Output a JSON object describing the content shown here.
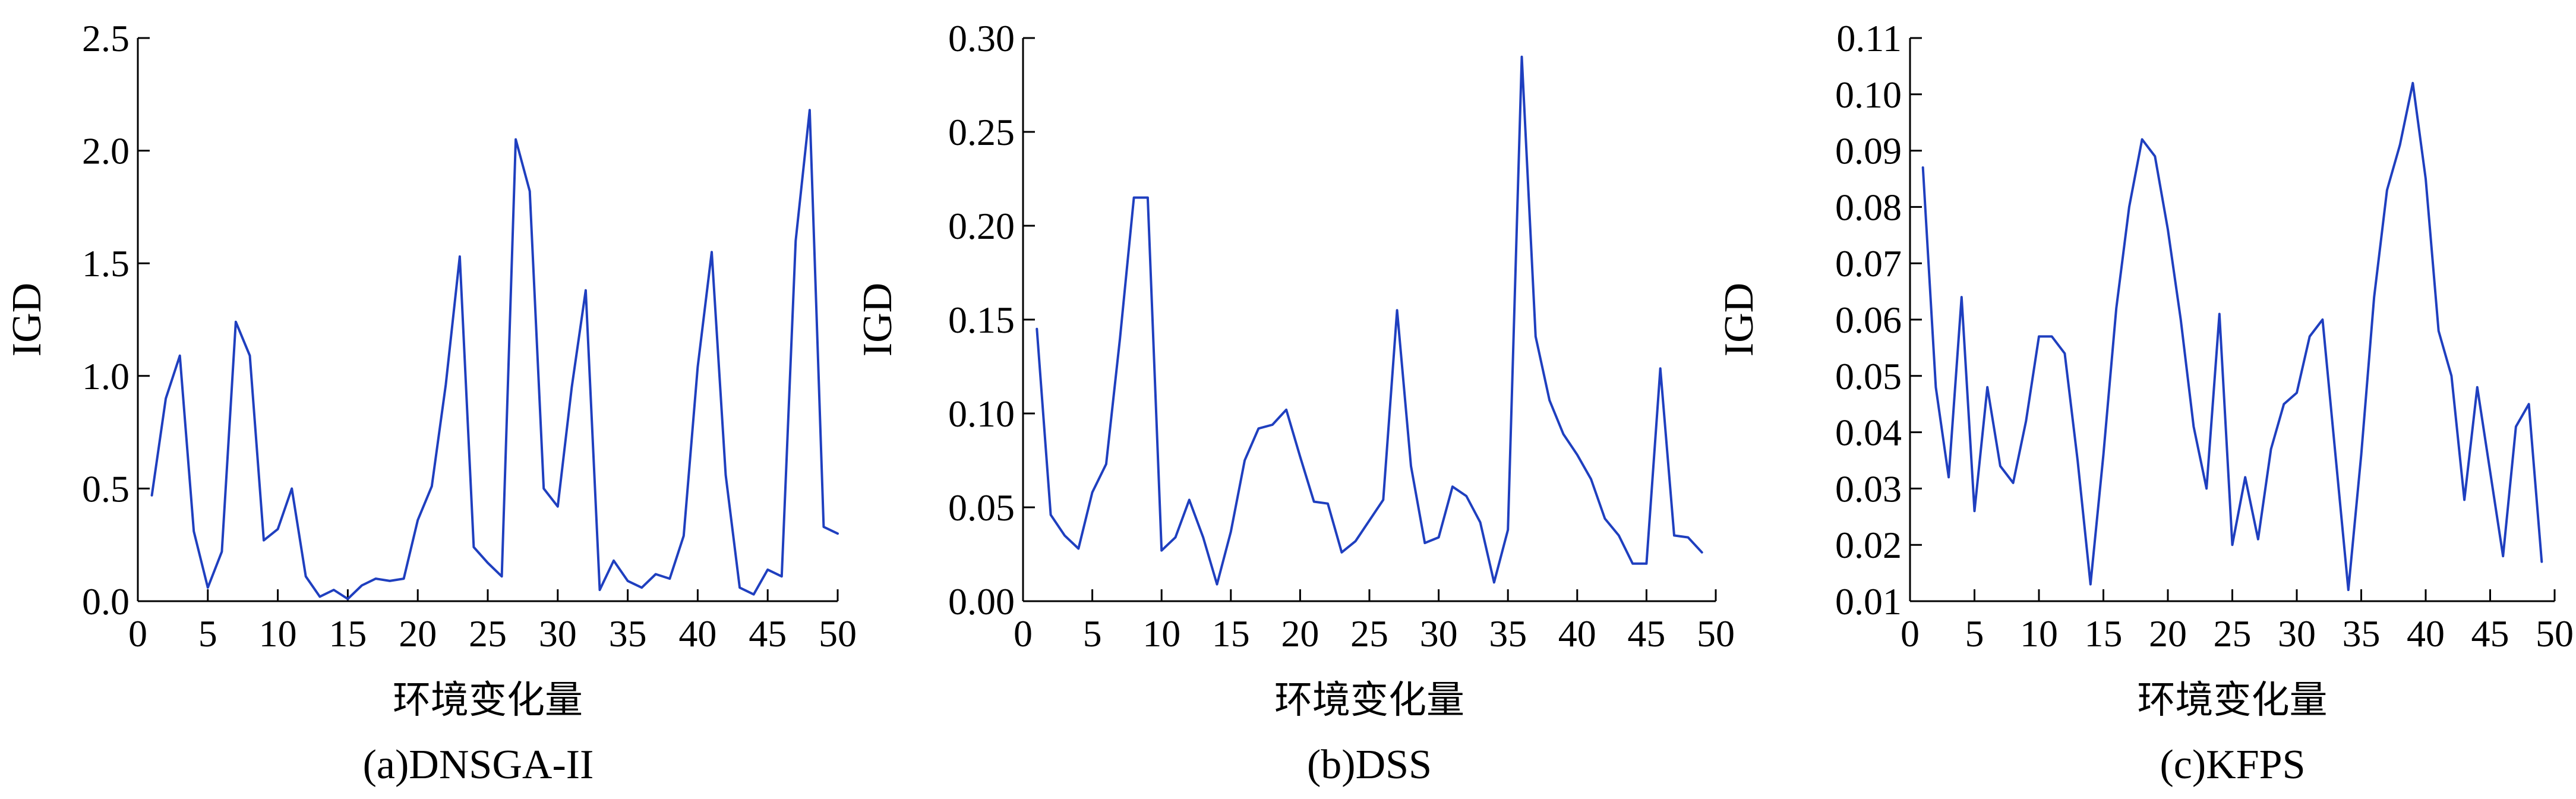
{
  "figure": {
    "line_color": "#1f3fbf"
  },
  "chart_data": [
    {
      "type": "line",
      "caption": "(a)DNSGA-II",
      "xlabel": "环境变化量",
      "ylabel": "IGD",
      "xlim": [
        0,
        50
      ],
      "ylim": [
        0,
        2.5
      ],
      "xticks": [
        0,
        5,
        10,
        15,
        20,
        25,
        30,
        35,
        40,
        45,
        50
      ],
      "yticks": [
        0,
        0.5,
        1.0,
        1.5,
        2.0,
        2.5
      ],
      "ytick_labels": [
        "0.0",
        "0.5",
        "1.0",
        "1.5",
        "2.0",
        "2.5"
      ],
      "series": [
        {
          "x": [
            1,
            2,
            3,
            4,
            5,
            6,
            7,
            8,
            9,
            10,
            11,
            12,
            13,
            14,
            15,
            16,
            17,
            18,
            19,
            20,
            21,
            22,
            23,
            24,
            25,
            26,
            27,
            28,
            29,
            30,
            31,
            32,
            33,
            34,
            35,
            36,
            37,
            38,
            39,
            40,
            41,
            42,
            43,
            44,
            45,
            46,
            47,
            48,
            49,
            50
          ],
          "values": [
            0.47,
            0.9,
            1.09,
            0.31,
            0.06,
            0.22,
            1.24,
            1.09,
            0.27,
            0.32,
            0.5,
            0.11,
            0.02,
            0.05,
            0.01,
            0.07,
            0.1,
            0.09,
            0.1,
            0.36,
            0.51,
            0.96,
            1.53,
            0.24,
            0.17,
            0.11,
            2.05,
            1.82,
            0.5,
            0.42,
            0.95,
            1.38,
            0.05,
            0.18,
            0.09,
            0.06,
            0.12,
            0.1,
            0.29,
            1.04,
            1.55,
            0.56,
            0.06,
            0.03,
            0.14,
            0.11,
            1.6,
            2.18,
            0.33,
            0.3
          ]
        }
      ]
    },
    {
      "type": "line",
      "caption": "(b)DSS",
      "xlabel": "环境变化量",
      "ylabel": "IGD",
      "xlim": [
        0,
        50
      ],
      "ylim": [
        0,
        0.3
      ],
      "xticks": [
        0,
        5,
        10,
        15,
        20,
        25,
        30,
        35,
        40,
        45,
        50
      ],
      "yticks": [
        0,
        0.05,
        0.1,
        0.15,
        0.2,
        0.25,
        0.3
      ],
      "ytick_labels": [
        "0.00",
        "0.05",
        "0.10",
        "0.15",
        "0.20",
        "0.25",
        "0.30"
      ],
      "series": [
        {
          "x": [
            1,
            2,
            3,
            4,
            5,
            6,
            7,
            8,
            9,
            10,
            11,
            12,
            13,
            14,
            15,
            16,
            17,
            18,
            19,
            20,
            21,
            22,
            23,
            24,
            25,
            26,
            27,
            28,
            29,
            30,
            31,
            32,
            33,
            34,
            35,
            36,
            37,
            38,
            39,
            40,
            41,
            42,
            43,
            44,
            45,
            46,
            47,
            48,
            49
          ],
          "values": [
            0.145,
            0.046,
            0.035,
            0.028,
            0.058,
            0.073,
            0.14,
            0.215,
            0.215,
            0.027,
            0.034,
            0.054,
            0.034,
            0.009,
            0.037,
            0.075,
            0.092,
            0.094,
            0.102,
            0.077,
            0.053,
            0.052,
            0.026,
            0.032,
            0.043,
            0.054,
            0.155,
            0.072,
            0.031,
            0.034,
            0.061,
            0.056,
            0.042,
            0.01,
            0.038,
            0.29,
            0.141,
            0.107,
            0.089,
            0.078,
            0.065,
            0.044,
            0.035,
            0.02,
            0.02,
            0.124,
            0.035,
            0.034,
            0.026
          ]
        }
      ]
    },
    {
      "type": "line",
      "caption": "(c)KFPS",
      "xlabel": "环境变化量",
      "ylabel": "IGD",
      "xlim": [
        0,
        50
      ],
      "ylim": [
        0.01,
        0.11
      ],
      "xticks": [
        0,
        5,
        10,
        15,
        20,
        25,
        30,
        35,
        40,
        45,
        50
      ],
      "yticks": [
        0.01,
        0.02,
        0.03,
        0.04,
        0.05,
        0.06,
        0.07,
        0.08,
        0.09,
        0.1,
        0.11
      ],
      "ytick_labels": [
        "0.01",
        "0.02",
        "0.03",
        "0.04",
        "0.05",
        "0.06",
        "0.07",
        "0.08",
        "0.09",
        "0.10",
        "0.11"
      ],
      "series": [
        {
          "x": [
            1,
            2,
            3,
            4,
            5,
            6,
            7,
            8,
            9,
            10,
            11,
            12,
            13,
            14,
            15,
            16,
            17,
            18,
            19,
            20,
            21,
            22,
            23,
            24,
            25,
            26,
            27,
            28,
            29,
            30,
            31,
            32,
            33,
            34,
            35,
            36,
            37,
            38,
            39,
            40,
            41,
            42,
            43,
            44,
            45,
            46,
            47,
            48,
            49
          ],
          "values": [
            0.087,
            0.048,
            0.032,
            0.064,
            0.026,
            0.048,
            0.034,
            0.031,
            0.042,
            0.057,
            0.057,
            0.054,
            0.035,
            0.013,
            0.036,
            0.062,
            0.08,
            0.092,
            0.089,
            0.076,
            0.06,
            0.041,
            0.03,
            0.061,
            0.02,
            0.032,
            0.021,
            0.037,
            0.045,
            0.047,
            0.057,
            0.06,
            0.036,
            0.012,
            0.036,
            0.064,
            0.083,
            0.091,
            0.102,
            0.085,
            0.058,
            0.05,
            0.028,
            0.048,
            0.033,
            0.018,
            0.041,
            0.045,
            0.017
          ]
        }
      ]
    }
  ]
}
